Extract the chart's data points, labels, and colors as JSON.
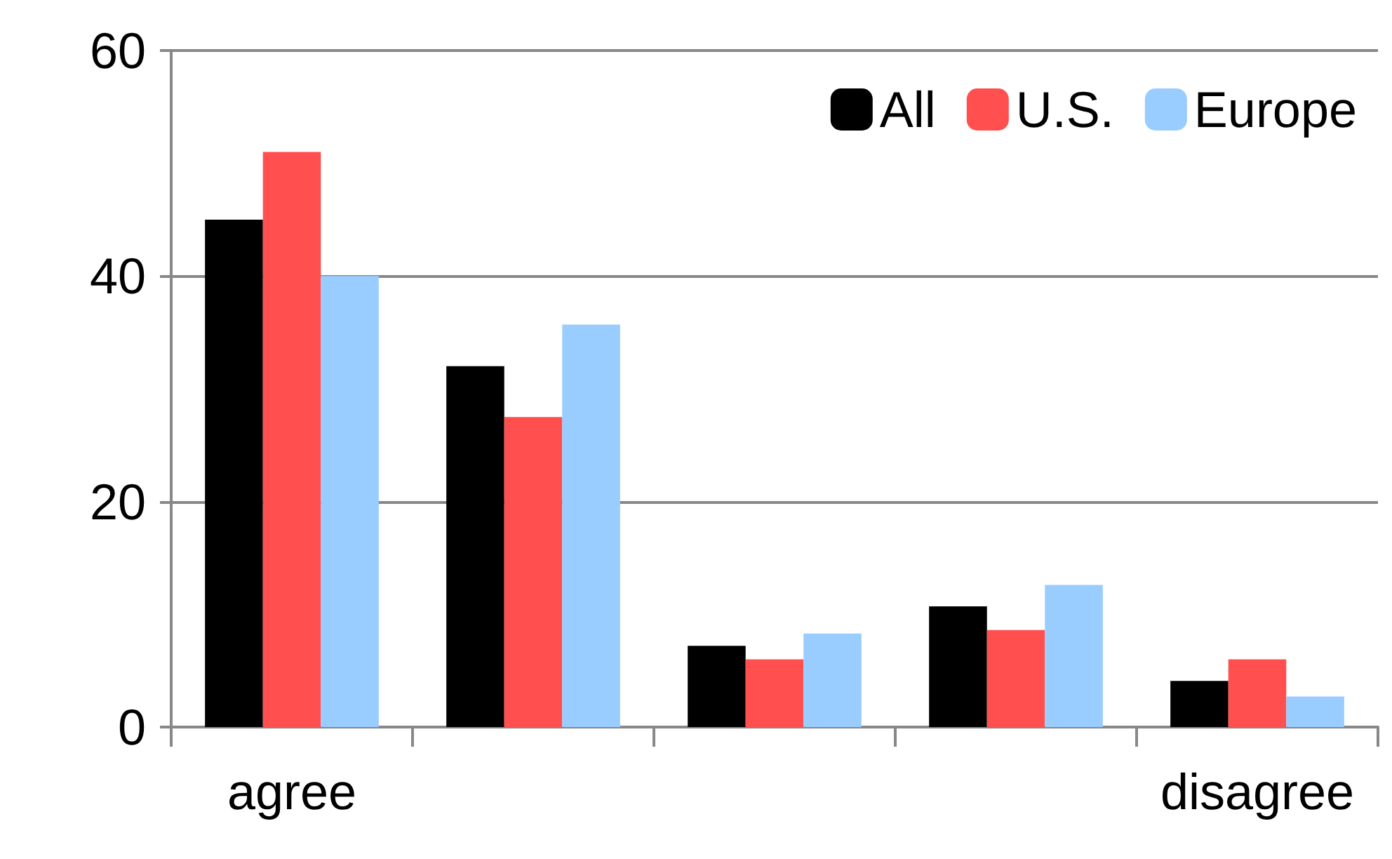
{
  "chart_data": {
    "type": "bar",
    "categories": [
      "agree",
      null,
      null,
      null,
      "disagree"
    ],
    "series": [
      {
        "name": "All",
        "color": "#000000",
        "values": [
          45,
          32,
          7.2,
          10.7,
          4.1
        ]
      },
      {
        "name": "U.S.",
        "color": "#ff4f4f",
        "values": [
          51,
          27.5,
          6,
          8.6,
          6
        ]
      },
      {
        "name": "Europe",
        "color": "#99ccff",
        "values": [
          40,
          35.7,
          8.3,
          12.6,
          2.7
        ]
      }
    ],
    "ylim": [
      0,
      60
    ],
    "yticks": [
      0,
      20,
      40,
      60
    ],
    "grid": "y",
    "legend": "top right"
  }
}
